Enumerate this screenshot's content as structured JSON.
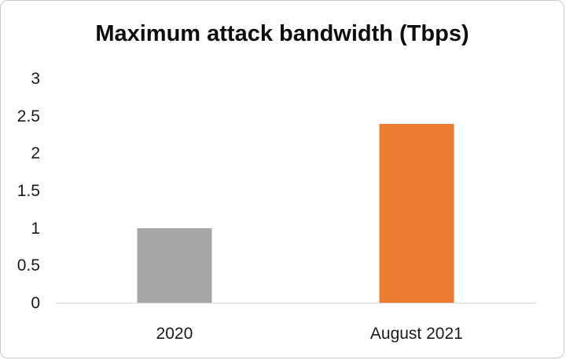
{
  "chart_data": {
    "type": "bar",
    "title": "Maximum attack bandwidth (Tbps)",
    "categories": [
      "2020",
      "August 2021"
    ],
    "values": [
      1,
      2.4
    ],
    "bar_colors": [
      "#a6a6a6",
      "#ed7d31"
    ],
    "xlabel": "",
    "ylabel": "",
    "ylim": [
      0,
      3
    ],
    "yticks": [
      "0",
      "0.5",
      "1",
      "1.5",
      "2",
      "2.5",
      "3"
    ],
    "grid": false,
    "legend": false
  }
}
